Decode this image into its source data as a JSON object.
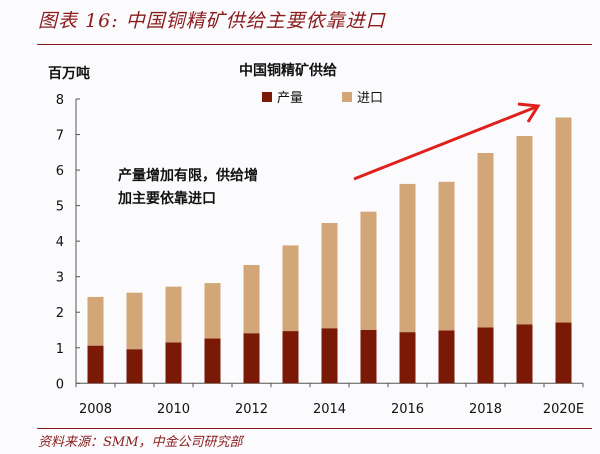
{
  "figure_title": "图表 16:  中国铜精矿供给主要依靠进口",
  "source": "资料来源：SMM，中金公司研究部",
  "chart_data": {
    "type": "bar",
    "stacked": true,
    "title": "中国铜精矿供给",
    "ylabel": "百万吨",
    "xlabel": "",
    "ylim": [
      0,
      8
    ],
    "yticks": [
      0,
      1,
      2,
      3,
      4,
      5,
      6,
      7,
      8
    ],
    "grid": false,
    "legend_position": "top-center",
    "categories": [
      "2008",
      "2009",
      "2010",
      "2011",
      "2012",
      "2013",
      "2014",
      "2015",
      "2016",
      "2017",
      "2018",
      "2019",
      "2020E"
    ],
    "xtick_labels": [
      "2008",
      "",
      "2010",
      "",
      "2012",
      "",
      "2014",
      "",
      "2016",
      "",
      "2018",
      "",
      "2020E"
    ],
    "series": [
      {
        "name": "产量",
        "color": "#7a1a06",
        "values": [
          1.06,
          0.96,
          1.15,
          1.26,
          1.41,
          1.47,
          1.55,
          1.5,
          1.44,
          1.49,
          1.57,
          1.66,
          1.71
        ]
      },
      {
        "name": "进口",
        "color": "#d2a676",
        "values": [
          1.37,
          1.59,
          1.57,
          1.56,
          1.92,
          2.41,
          2.96,
          3.33,
          4.17,
          4.18,
          4.91,
          5.3,
          5.77
        ]
      }
    ],
    "annotation": {
      "lines": [
        "产量增加有限，供给增",
        "加主要依靠进口"
      ],
      "arrow_color": "#e0201a"
    }
  }
}
